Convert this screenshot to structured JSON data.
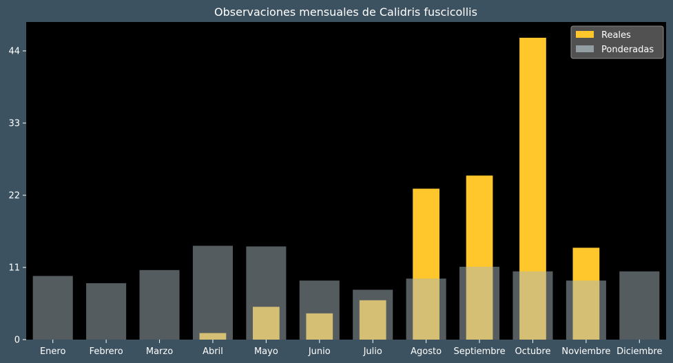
{
  "chart_data": {
    "type": "bar",
    "title": "Observaciones mensuales de Calidris fuscicollis",
    "xlabel": "",
    "ylabel": "",
    "categories": [
      "Enero",
      "Febrero",
      "Marzo",
      "Abril",
      "Mayo",
      "Junio",
      "Julio",
      "Agosto",
      "Septiembre",
      "Octubre",
      "Noviembre",
      "Diciembre"
    ],
    "yticks": [
      0,
      11,
      22,
      33,
      44
    ],
    "ylim": [
      0,
      48.4
    ],
    "grid": false,
    "legend_position": "top-right",
    "series": [
      {
        "name": "Reales",
        "color": "#ffc72c",
        "opacity": 1,
        "values": [
          0,
          0,
          0,
          1,
          5,
          4,
          6,
          23,
          25,
          46,
          14,
          0
        ]
      },
      {
        "name": "Ponderadas",
        "color": "#a9b8bd",
        "opacity": 0.5,
        "values": [
          9.7,
          8.6,
          10.6,
          14.3,
          14.2,
          9.0,
          7.6,
          9.3,
          11.1,
          10.4,
          9.0,
          10.4
        ]
      }
    ],
    "colors": {
      "background": "#3d5260",
      "plot_background": "#000000",
      "text": "#ffffff",
      "legend_background": "#555555"
    }
  }
}
